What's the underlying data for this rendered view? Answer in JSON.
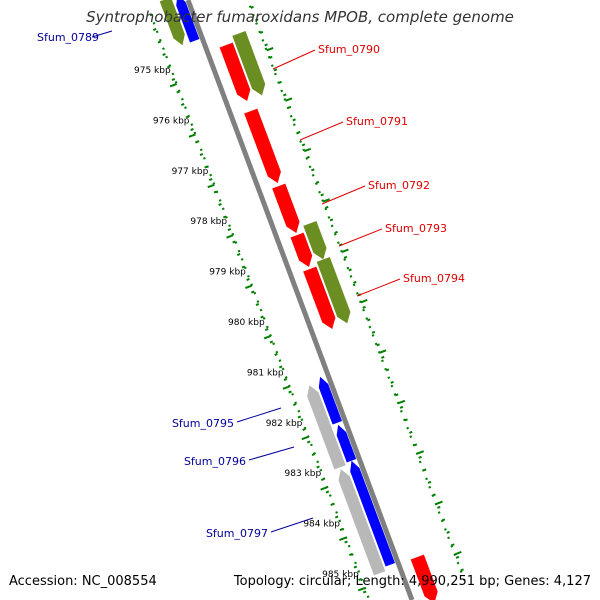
{
  "title": "Syntrophobacter fumaroxidans MPOB, complete genome",
  "accession_label": "Accession: NC_008554",
  "topology_label": "Topology: circular; Length: 4,990,251 bp; Genes: 4,127",
  "colors": {
    "backbone": "#808080",
    "forward_red": "#ff0000",
    "forward_green": "#6b8e23",
    "reverse_blue": "#0000ff",
    "reverse_gray": "#b8b8b8",
    "tick_green": "#008000",
    "label_red": "#dd0000",
    "label_blue": "#000099"
  },
  "scale": {
    "unit": "kbp",
    "ticks": [
      "975 kbp",
      "976 kbp",
      "977 kbp",
      "978 kbp",
      "979 kbp",
      "980 kbp",
      "981 kbp",
      "982 kbp",
      "983 kbp",
      "984 kbp",
      "985 kbp"
    ]
  },
  "genes": [
    {
      "label": "Sfum_0789",
      "label_color": "blue"
    },
    {
      "label": "Sfum_0790",
      "label_color": "red"
    },
    {
      "label": "Sfum_0791",
      "label_color": "red"
    },
    {
      "label": "Sfum_0792",
      "label_color": "red"
    },
    {
      "label": "Sfum_0793",
      "label_color": "red"
    },
    {
      "label": "Sfum_0794",
      "label_color": "red"
    },
    {
      "label": "Sfum_0795",
      "label_color": "blue"
    },
    {
      "label": "Sfum_0796",
      "label_color": "blue"
    },
    {
      "label": "Sfum_0797",
      "label_color": "blue"
    }
  ]
}
